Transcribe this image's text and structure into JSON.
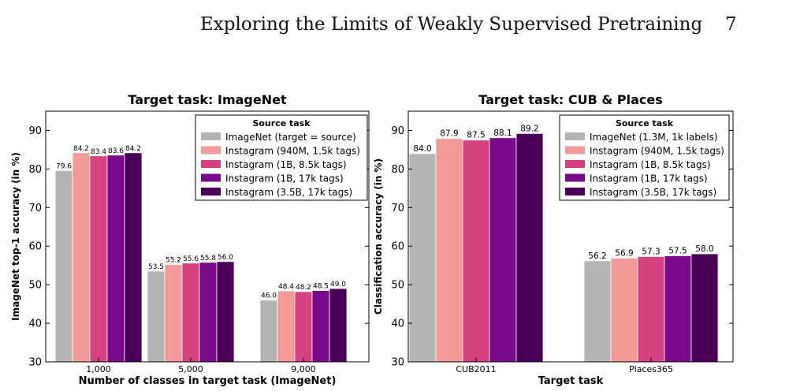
{
  "page": {
    "running_title": "Exploring the Limits of Weakly Supervised Pretraining",
    "page_number": "7"
  },
  "colors": {
    "imagenet": "#b4b4b4",
    "ig_940m": "#f29a98",
    "ig_1b_8k": "#d6417f",
    "ig_1b_17k": "#7a0a8c",
    "ig_3_5b": "#4a0057"
  },
  "chart_data": [
    {
      "type": "bar",
      "title": "Target task: ImageNet",
      "xlabel": "Number of classes in target task (ImageNet)",
      "ylabel": "ImageNet top-1 accuracy (in %)",
      "ylim": [
        30,
        95
      ],
      "yticks": [
        "30",
        "40",
        "50",
        "60",
        "70",
        "80",
        "90"
      ],
      "categories": [
        "1,000",
        "5,000",
        "9,000"
      ],
      "grid": false,
      "legend": {
        "title": "Source task",
        "placement": "top-right",
        "entries": [
          "ImageNet (target = source)",
          "Instagram (940M, 1.5k tags)",
          "Instagram (1B, 8.5k tags)",
          "Instagram (1B, 17k tags)",
          "Instagram (3.5B, 17k tags)"
        ]
      },
      "series": [
        {
          "name": "ImageNet (target = source)",
          "values": [
            79.6,
            53.5,
            46.0
          ],
          "labels": [
            "79.6",
            "53.5",
            "46.0"
          ]
        },
        {
          "name": "Instagram (940M, 1.5k tags)",
          "values": [
            84.2,
            55.2,
            48.4
          ],
          "labels": [
            "84.2",
            "55.2",
            "48.4"
          ]
        },
        {
          "name": "Instagram (1B, 8.5k tags)",
          "values": [
            83.4,
            55.6,
            48.2
          ],
          "labels": [
            "83.4",
            "55.6",
            "48.2"
          ]
        },
        {
          "name": "Instagram (1B, 17k tags)",
          "values": [
            83.6,
            55.8,
            48.5
          ],
          "labels": [
            "83.6",
            "55.8",
            "48.5"
          ]
        },
        {
          "name": "Instagram (3.5B, 17k tags)",
          "values": [
            84.2,
            56.0,
            49.0
          ],
          "labels": [
            "84.2",
            "56.0",
            "49.0"
          ]
        }
      ]
    },
    {
      "type": "bar",
      "title": "Target task: CUB & Places",
      "xlabel": "Target task",
      "ylabel": "Classification accuracy (in %)",
      "ylim": [
        30,
        95
      ],
      "yticks": [
        "30",
        "40",
        "50",
        "60",
        "70",
        "80",
        "90"
      ],
      "categories": [
        "CUB2011",
        "Places365"
      ],
      "grid": false,
      "legend": {
        "title": "Source task",
        "placement": "top-right",
        "entries": [
          "ImageNet (1.3M, 1k labels)",
          "Instagram (940M, 1.5k tags)",
          "Instagram (1B, 8.5k tags)",
          "Instagram (1B, 17k tags)",
          "Instagram (3.5B, 17k tags)"
        ]
      },
      "series": [
        {
          "name": "ImageNet (1.3M, 1k labels)",
          "values": [
            84.0,
            56.2
          ],
          "labels": [
            "84.0",
            "56.2"
          ]
        },
        {
          "name": "Instagram (940M, 1.5k tags)",
          "values": [
            87.9,
            56.9
          ],
          "labels": [
            "87.9",
            "56.9"
          ]
        },
        {
          "name": "Instagram (1B, 8.5k tags)",
          "values": [
            87.5,
            57.3
          ],
          "labels": [
            "87.5",
            "57.3"
          ]
        },
        {
          "name": "Instagram (1B, 17k tags)",
          "values": [
            88.1,
            57.5
          ],
          "labels": [
            "88.1",
            "57.5"
          ]
        },
        {
          "name": "Instagram (3.5B, 17k tags)",
          "values": [
            89.2,
            58.0
          ],
          "labels": [
            "89.2",
            "58.0"
          ]
        }
      ]
    }
  ]
}
